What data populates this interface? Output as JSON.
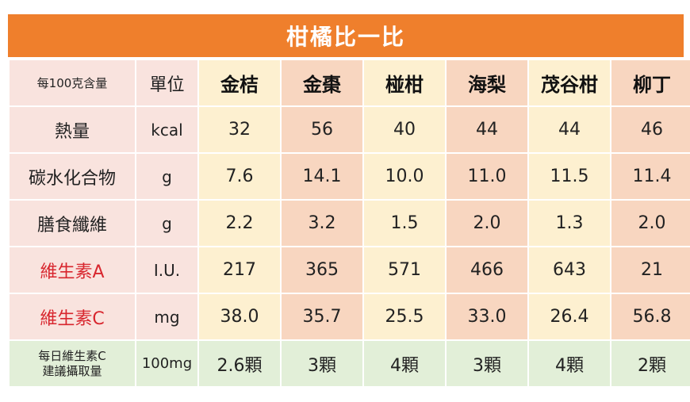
{
  "title": "柑橘比一比",
  "header": {
    "label": "每100克含量",
    "unit": "單位",
    "fruits": [
      "金桔",
      "金棗",
      "椪柑",
      "海梨",
      "茂谷柑",
      "柳丁"
    ]
  },
  "rows": [
    {
      "label": "熱量",
      "unit": "kcal",
      "values": [
        "32",
        "56",
        "40",
        "44",
        "44",
        "46"
      ]
    },
    {
      "label": "碳水化合物",
      "unit": "g",
      "values": [
        "7.6",
        "14.1",
        "10.0",
        "11.0",
        "11.5",
        "11.4"
      ]
    },
    {
      "label": "膳食纖維",
      "unit": "g",
      "values": [
        "2.2",
        "3.2",
        "1.5",
        "2.0",
        "1.3",
        "2.0"
      ]
    },
    {
      "label": "維生素A",
      "unit": "I.U.",
      "values": [
        "217",
        "365",
        "571",
        "466",
        "643",
        "21"
      ]
    },
    {
      "label": "維生素C",
      "unit": "mg",
      "values": [
        "38.0",
        "35.7",
        "25.5",
        "33.0",
        "26.4",
        "56.8"
      ]
    }
  ],
  "footer": {
    "label_line1": "每日維生素C",
    "label_line2": "建議攝取量",
    "unit": "100mg",
    "values": [
      "2.6顆",
      "3顆",
      "4顆",
      "3顆",
      "4顆",
      "2顆"
    ]
  },
  "colors": {
    "title_bg": "#ef7f2c",
    "label_bg": "#f9e3de",
    "col_yellow": "#fdf0d0",
    "col_peach": "#f8d6c0",
    "footer_bg": "#e2efd8",
    "vitamin_text": "#d8262e"
  }
}
